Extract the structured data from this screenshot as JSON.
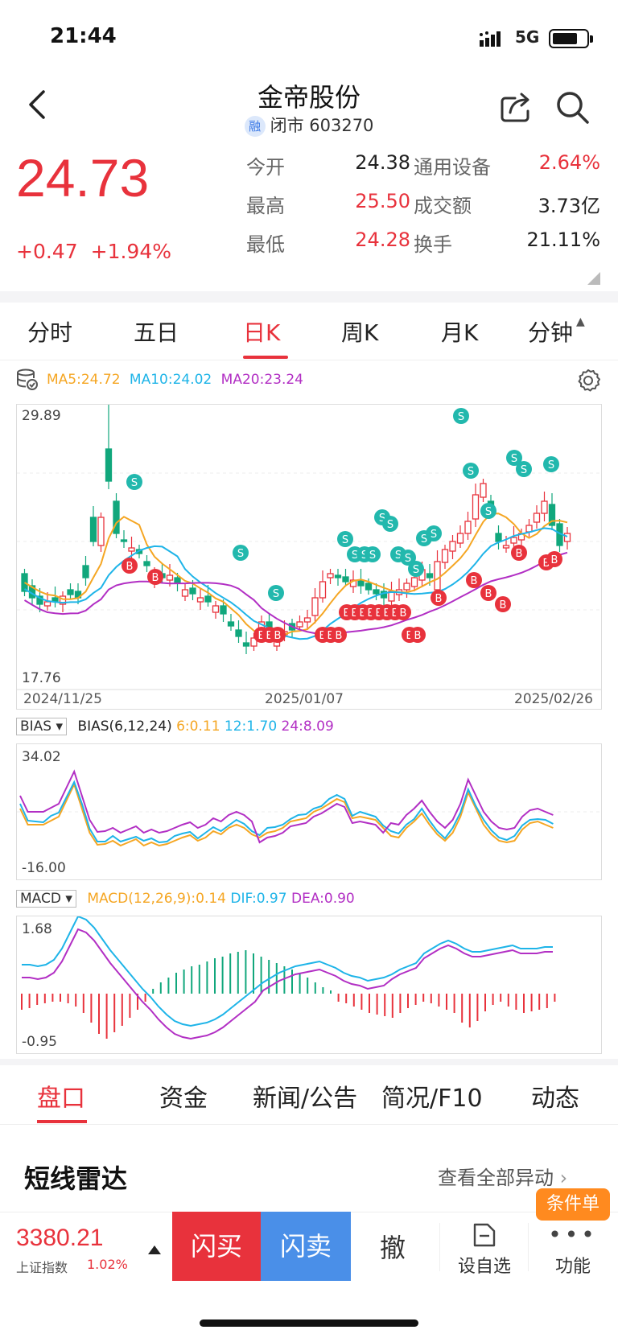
{
  "status": {
    "time": "21:44",
    "network": "5G"
  },
  "header": {
    "title": "金帝股份",
    "badge": "融",
    "subtitle": "闭市 603270"
  },
  "quote": {
    "price": "24.73",
    "change": "+0.47",
    "change_pct": "+1.94%"
  },
  "stats": [
    {
      "label1": "今开",
      "value1": "24.38",
      "label2": "通用设备",
      "value2": "2.64%",
      "v1_red": false,
      "v2_red": true
    },
    {
      "label1": "最高",
      "value1": "25.50",
      "label2": "成交额",
      "value2": "3.73亿",
      "v1_red": true,
      "v2_red": false
    },
    {
      "label1": "最低",
      "value1": "24.28",
      "label2": "换手",
      "value2": "21.11%",
      "v1_red": true,
      "v2_red": false
    }
  ],
  "tabs": [
    "分时",
    "五日",
    "日K",
    "周K",
    "月K",
    "分钟"
  ],
  "active_tab": "日K",
  "ma": {
    "ma5": "MA5:24.72",
    "ma10": "MA10:24.02",
    "ma20": "MA20:23.24"
  },
  "kline": {
    "high_label": "29.89",
    "low_label": "17.76",
    "dates": [
      "2024/11/25",
      "2025/01/07",
      "2025/02/26"
    ]
  },
  "bias": {
    "name": "BIAS",
    "params": "BIAS(6,12,24)",
    "v6": "6:0.11",
    "v12": "12:1.70",
    "v24": "24:8.09",
    "top": "34.02",
    "bottom": "-16.00"
  },
  "macd": {
    "name": "MACD",
    "params": "MACD(12,26,9):0.14",
    "dif": "DIF:0.97",
    "dea": "DEA:0.90",
    "top": "1.68",
    "bottom": "-0.95"
  },
  "markers": {
    "buy": "B",
    "sell": "S",
    "eb": "EB"
  },
  "bottom_tabs": [
    "盘口",
    "资金",
    "新闻/公告",
    "简况/F10",
    "动态"
  ],
  "radar": {
    "title": "短线雷达",
    "link": "查看全部异动"
  },
  "toolbar": {
    "index_value": "3380.21",
    "index_name": "上证指数",
    "index_pct": "1.02%",
    "buy": "闪买",
    "sell": "闪卖",
    "cancel": "撤",
    "watch": "设自选",
    "more": "功能",
    "badge": "条件单"
  },
  "colors": {
    "up": "#e8323c",
    "down": "#11a77c",
    "ma5": "#f5a623",
    "ma10": "#1eb4e8",
    "ma20": "#b22fc4",
    "sell_marker": "#22b8ad"
  }
}
